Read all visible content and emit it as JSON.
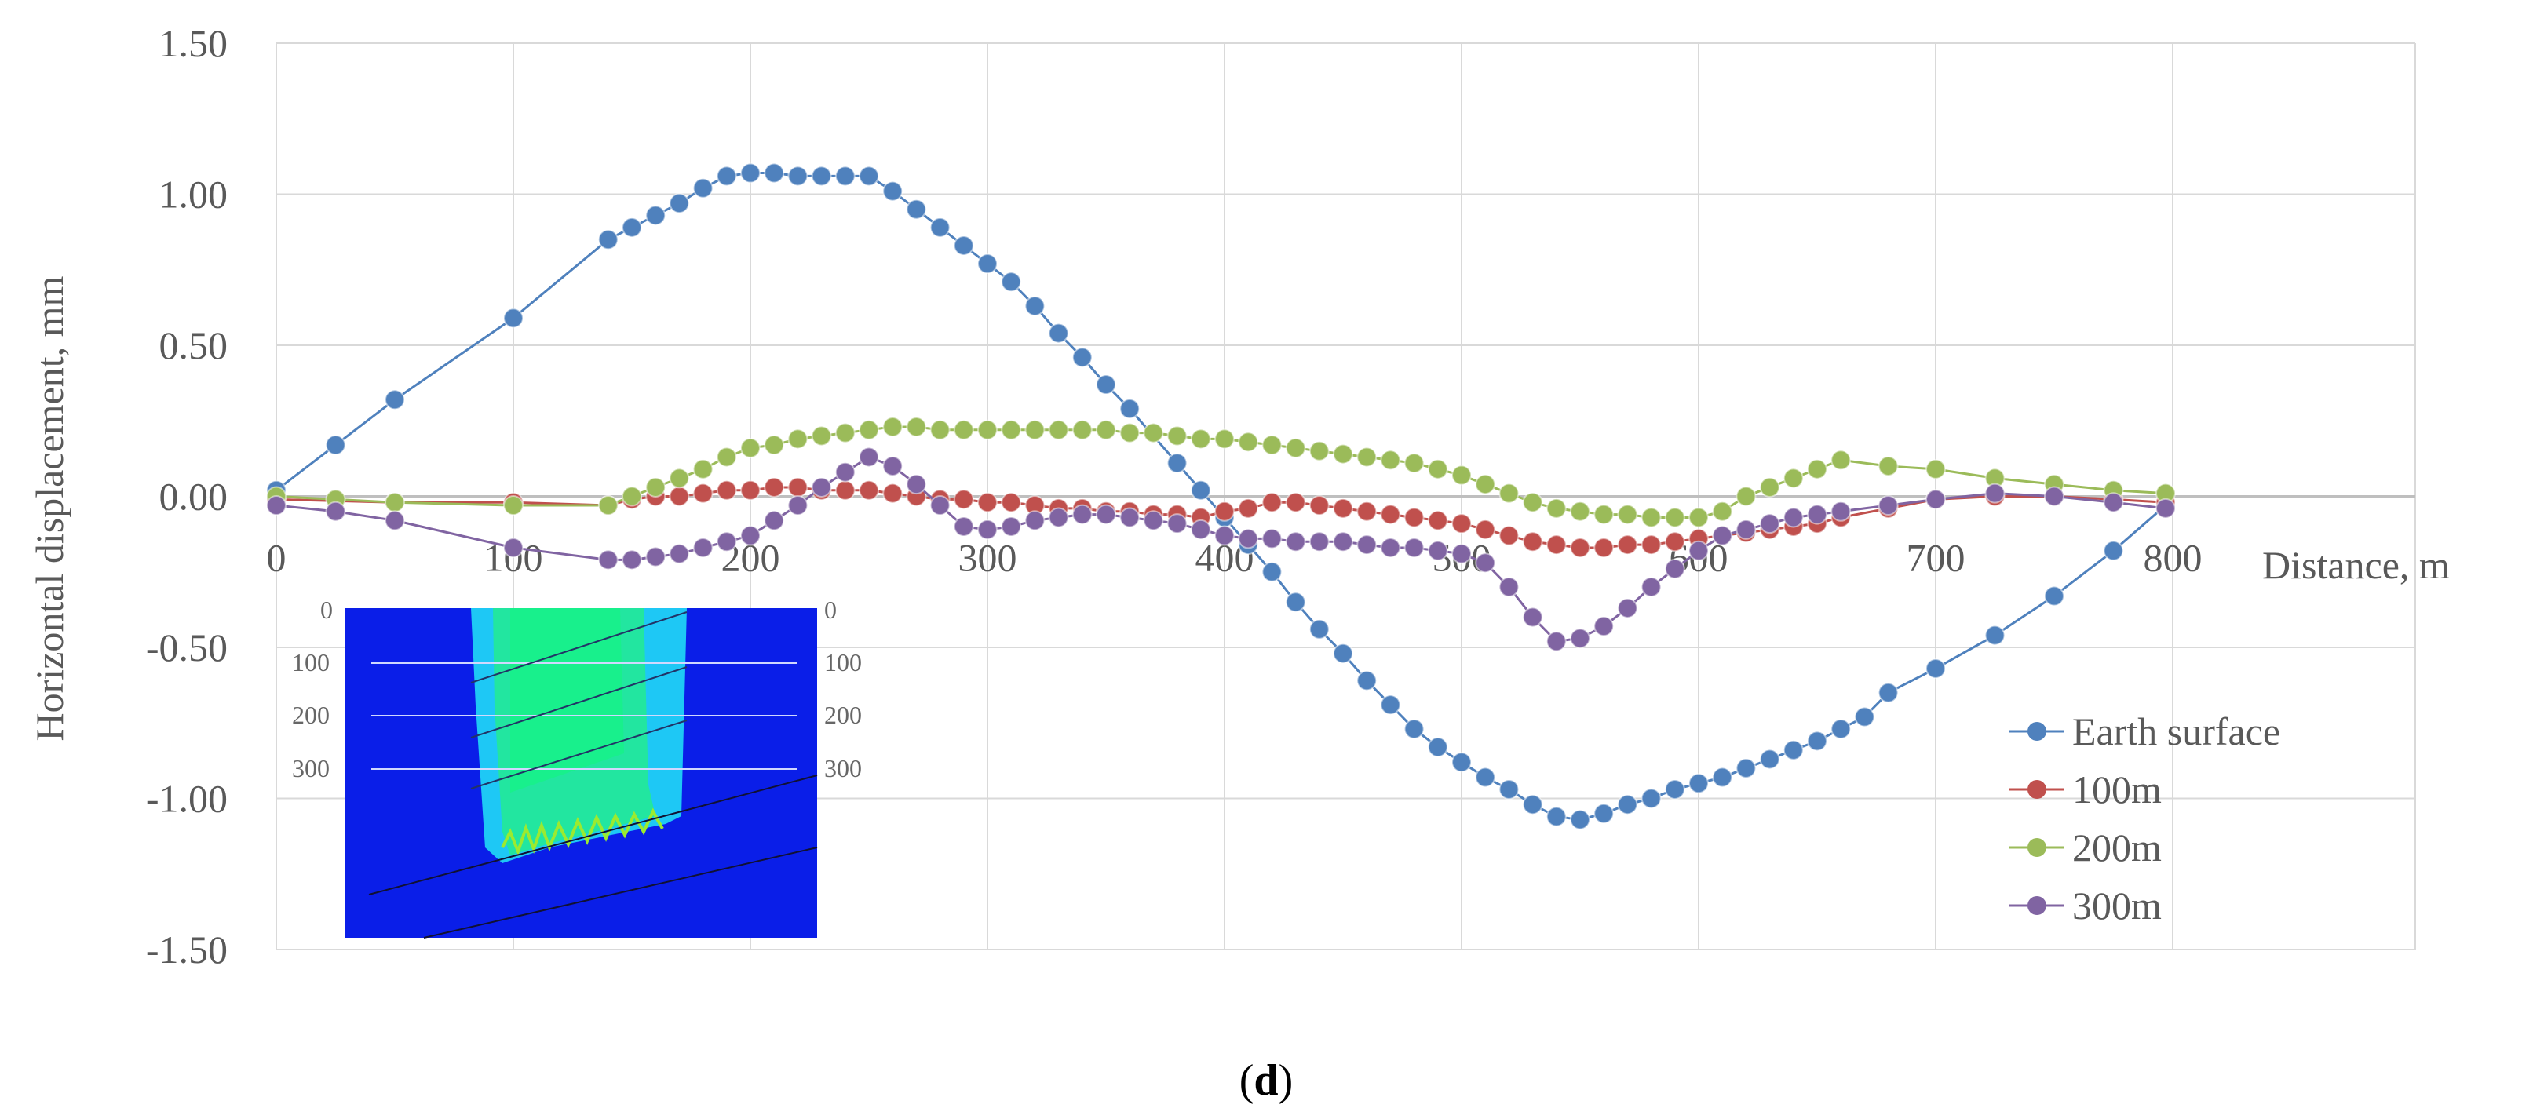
{
  "panel_label": {
    "open": "(",
    "letter": "d",
    "close": ")"
  },
  "inset": {
    "depth_labels": [
      "0",
      "100",
      "200",
      "300"
    ],
    "colors": {
      "background": "#0a1ee8",
      "outer": "#1ec8f5",
      "inner": "#22e6a0",
      "core": "#18f08c"
    }
  },
  "chart_data": {
    "type": "line",
    "xlabel": "Distance, m",
    "ylabel": "Horizontal displacement, mm",
    "xlim": [
      0,
      900
    ],
    "ylim": [
      -1.5,
      1.5
    ],
    "x_ticks": [
      "0",
      "100",
      "200",
      "300",
      "400",
      "500",
      "600",
      "700",
      "800"
    ],
    "y_ticks": [
      "1.50",
      "1.00",
      "0.50",
      "0.00",
      "-0.50",
      "-1.00",
      "-1.50"
    ],
    "grid": true,
    "legend_position": "right",
    "series": [
      {
        "name": "Earth surface",
        "color": "#4f81bd",
        "points": [
          [
            0,
            0.02
          ],
          [
            25,
            0.17
          ],
          [
            50,
            0.32
          ],
          [
            100,
            0.59
          ],
          [
            140,
            0.85
          ],
          [
            150,
            0.89
          ],
          [
            160,
            0.93
          ],
          [
            170,
            0.97
          ],
          [
            180,
            1.02
          ],
          [
            190,
            1.06
          ],
          [
            200,
            1.07
          ],
          [
            210,
            1.07
          ],
          [
            220,
            1.06
          ],
          [
            230,
            1.06
          ],
          [
            240,
            1.06
          ],
          [
            250,
            1.06
          ],
          [
            260,
            1.01
          ],
          [
            270,
            0.95
          ],
          [
            280,
            0.89
          ],
          [
            290,
            0.83
          ],
          [
            300,
            0.77
          ],
          [
            310,
            0.71
          ],
          [
            320,
            0.63
          ],
          [
            330,
            0.54
          ],
          [
            340,
            0.46
          ],
          [
            350,
            0.37
          ],
          [
            360,
            0.29
          ],
          [
            380,
            0.11
          ],
          [
            390,
            0.02
          ],
          [
            400,
            -0.07
          ],
          [
            410,
            -0.16
          ],
          [
            420,
            -0.25
          ],
          [
            430,
            -0.35
          ],
          [
            440,
            -0.44
          ],
          [
            450,
            -0.52
          ],
          [
            460,
            -0.61
          ],
          [
            470,
            -0.69
          ],
          [
            480,
            -0.77
          ],
          [
            490,
            -0.83
          ],
          [
            500,
            -0.88
          ],
          [
            510,
            -0.93
          ],
          [
            520,
            -0.97
          ],
          [
            530,
            -1.02
          ],
          [
            540,
            -1.06
          ],
          [
            550,
            -1.07
          ],
          [
            560,
            -1.05
          ],
          [
            570,
            -1.02
          ],
          [
            580,
            -1.0
          ],
          [
            590,
            -0.97
          ],
          [
            600,
            -0.95
          ],
          [
            610,
            -0.93
          ],
          [
            620,
            -0.9
          ],
          [
            630,
            -0.87
          ],
          [
            640,
            -0.84
          ],
          [
            650,
            -0.81
          ],
          [
            660,
            -0.77
          ],
          [
            670,
            -0.73
          ],
          [
            680,
            -0.65
          ],
          [
            700,
            -0.57
          ],
          [
            725,
            -0.46
          ],
          [
            750,
            -0.33
          ],
          [
            775,
            -0.18
          ],
          [
            797,
            -0.03
          ]
        ]
      },
      {
        "name": "100m",
        "color": "#c0504d",
        "points": [
          [
            0,
            -0.01
          ],
          [
            50,
            -0.02
          ],
          [
            100,
            -0.02
          ],
          [
            140,
            -0.03
          ],
          [
            150,
            -0.01
          ],
          [
            160,
            0.0
          ],
          [
            170,
            0.0
          ],
          [
            180,
            0.01
          ],
          [
            190,
            0.02
          ],
          [
            200,
            0.02
          ],
          [
            210,
            0.03
          ],
          [
            220,
            0.03
          ],
          [
            230,
            0.02
          ],
          [
            240,
            0.02
          ],
          [
            250,
            0.02
          ],
          [
            260,
            0.01
          ],
          [
            270,
            0.0
          ],
          [
            280,
            -0.01
          ],
          [
            290,
            -0.01
          ],
          [
            300,
            -0.02
          ],
          [
            310,
            -0.02
          ],
          [
            320,
            -0.03
          ],
          [
            330,
            -0.04
          ],
          [
            340,
            -0.04
          ],
          [
            350,
            -0.05
          ],
          [
            360,
            -0.05
          ],
          [
            370,
            -0.06
          ],
          [
            380,
            -0.06
          ],
          [
            390,
            -0.07
          ],
          [
            400,
            -0.05
          ],
          [
            410,
            -0.04
          ],
          [
            420,
            -0.02
          ],
          [
            430,
            -0.02
          ],
          [
            440,
            -0.03
          ],
          [
            450,
            -0.04
          ],
          [
            460,
            -0.05
          ],
          [
            470,
            -0.06
          ],
          [
            480,
            -0.07
          ],
          [
            490,
            -0.08
          ],
          [
            500,
            -0.09
          ],
          [
            510,
            -0.11
          ],
          [
            520,
            -0.13
          ],
          [
            530,
            -0.15
          ],
          [
            540,
            -0.16
          ],
          [
            550,
            -0.17
          ],
          [
            560,
            -0.17
          ],
          [
            570,
            -0.16
          ],
          [
            580,
            -0.16
          ],
          [
            590,
            -0.15
          ],
          [
            600,
            -0.14
          ],
          [
            610,
            -0.13
          ],
          [
            620,
            -0.12
          ],
          [
            630,
            -0.11
          ],
          [
            640,
            -0.1
          ],
          [
            650,
            -0.09
          ],
          [
            660,
            -0.07
          ],
          [
            680,
            -0.04
          ],
          [
            700,
            -0.01
          ],
          [
            725,
            0.0
          ],
          [
            750,
            0.0
          ],
          [
            775,
            -0.01
          ],
          [
            797,
            -0.02
          ]
        ]
      },
      {
        "name": "200m",
        "color": "#9bbb59",
        "points": [
          [
            0,
            0.0
          ],
          [
            25,
            -0.01
          ],
          [
            50,
            -0.02
          ],
          [
            100,
            -0.03
          ],
          [
            140,
            -0.03
          ],
          [
            150,
            0.0
          ],
          [
            160,
            0.03
          ],
          [
            170,
            0.06
          ],
          [
            180,
            0.09
          ],
          [
            190,
            0.13
          ],
          [
            200,
            0.16
          ],
          [
            210,
            0.17
          ],
          [
            220,
            0.19
          ],
          [
            230,
            0.2
          ],
          [
            240,
            0.21
          ],
          [
            250,
            0.22
          ],
          [
            260,
            0.23
          ],
          [
            270,
            0.23
          ],
          [
            280,
            0.22
          ],
          [
            290,
            0.22
          ],
          [
            300,
            0.22
          ],
          [
            310,
            0.22
          ],
          [
            320,
            0.22
          ],
          [
            330,
            0.22
          ],
          [
            340,
            0.22
          ],
          [
            350,
            0.22
          ],
          [
            360,
            0.21
          ],
          [
            370,
            0.21
          ],
          [
            380,
            0.2
          ],
          [
            390,
            0.19
          ],
          [
            400,
            0.19
          ],
          [
            410,
            0.18
          ],
          [
            420,
            0.17
          ],
          [
            430,
            0.16
          ],
          [
            440,
            0.15
          ],
          [
            450,
            0.14
          ],
          [
            460,
            0.13
          ],
          [
            470,
            0.12
          ],
          [
            480,
            0.11
          ],
          [
            490,
            0.09
          ],
          [
            500,
            0.07
          ],
          [
            510,
            0.04
          ],
          [
            520,
            0.01
          ],
          [
            530,
            -0.02
          ],
          [
            540,
            -0.04
          ],
          [
            550,
            -0.05
          ],
          [
            560,
            -0.06
          ],
          [
            570,
            -0.06
          ],
          [
            580,
            -0.07
          ],
          [
            590,
            -0.07
          ],
          [
            600,
            -0.07
          ],
          [
            610,
            -0.05
          ],
          [
            620,
            0.0
          ],
          [
            630,
            0.03
          ],
          [
            640,
            0.06
          ],
          [
            650,
            0.09
          ],
          [
            660,
            0.12
          ],
          [
            680,
            0.1
          ],
          [
            700,
            0.09
          ],
          [
            725,
            0.06
          ],
          [
            750,
            0.04
          ],
          [
            775,
            0.02
          ],
          [
            797,
            0.01
          ]
        ]
      },
      {
        "name": "300m",
        "color": "#8064a2",
        "points": [
          [
            0,
            -0.03
          ],
          [
            25,
            -0.05
          ],
          [
            50,
            -0.08
          ],
          [
            100,
            -0.17
          ],
          [
            140,
            -0.21
          ],
          [
            150,
            -0.21
          ],
          [
            160,
            -0.2
          ],
          [
            170,
            -0.19
          ],
          [
            180,
            -0.17
          ],
          [
            190,
            -0.15
          ],
          [
            200,
            -0.13
          ],
          [
            210,
            -0.08
          ],
          [
            220,
            -0.03
          ],
          [
            230,
            0.03
          ],
          [
            240,
            0.08
          ],
          [
            250,
            0.13
          ],
          [
            260,
            0.1
          ],
          [
            270,
            0.04
          ],
          [
            280,
            -0.03
          ],
          [
            290,
            -0.1
          ],
          [
            300,
            -0.11
          ],
          [
            310,
            -0.1
          ],
          [
            320,
            -0.08
          ],
          [
            330,
            -0.07
          ],
          [
            340,
            -0.06
          ],
          [
            350,
            -0.06
          ],
          [
            360,
            -0.07
          ],
          [
            370,
            -0.08
          ],
          [
            380,
            -0.09
          ],
          [
            390,
            -0.11
          ],
          [
            400,
            -0.13
          ],
          [
            410,
            -0.14
          ],
          [
            420,
            -0.14
          ],
          [
            430,
            -0.15
          ],
          [
            440,
            -0.15
          ],
          [
            450,
            -0.15
          ],
          [
            460,
            -0.16
          ],
          [
            470,
            -0.17
          ],
          [
            480,
            -0.17
          ],
          [
            490,
            -0.18
          ],
          [
            500,
            -0.19
          ],
          [
            510,
            -0.22
          ],
          [
            520,
            -0.3
          ],
          [
            530,
            -0.4
          ],
          [
            540,
            -0.48
          ],
          [
            550,
            -0.47
          ],
          [
            560,
            -0.43
          ],
          [
            570,
            -0.37
          ],
          [
            580,
            -0.3
          ],
          [
            590,
            -0.24
          ],
          [
            600,
            -0.18
          ],
          [
            610,
            -0.13
          ],
          [
            620,
            -0.11
          ],
          [
            630,
            -0.09
          ],
          [
            640,
            -0.07
          ],
          [
            650,
            -0.06
          ],
          [
            660,
            -0.05
          ],
          [
            680,
            -0.03
          ],
          [
            700,
            -0.01
          ],
          [
            725,
            0.01
          ],
          [
            750,
            0.0
          ],
          [
            775,
            -0.02
          ],
          [
            797,
            -0.04
          ]
        ]
      }
    ]
  }
}
